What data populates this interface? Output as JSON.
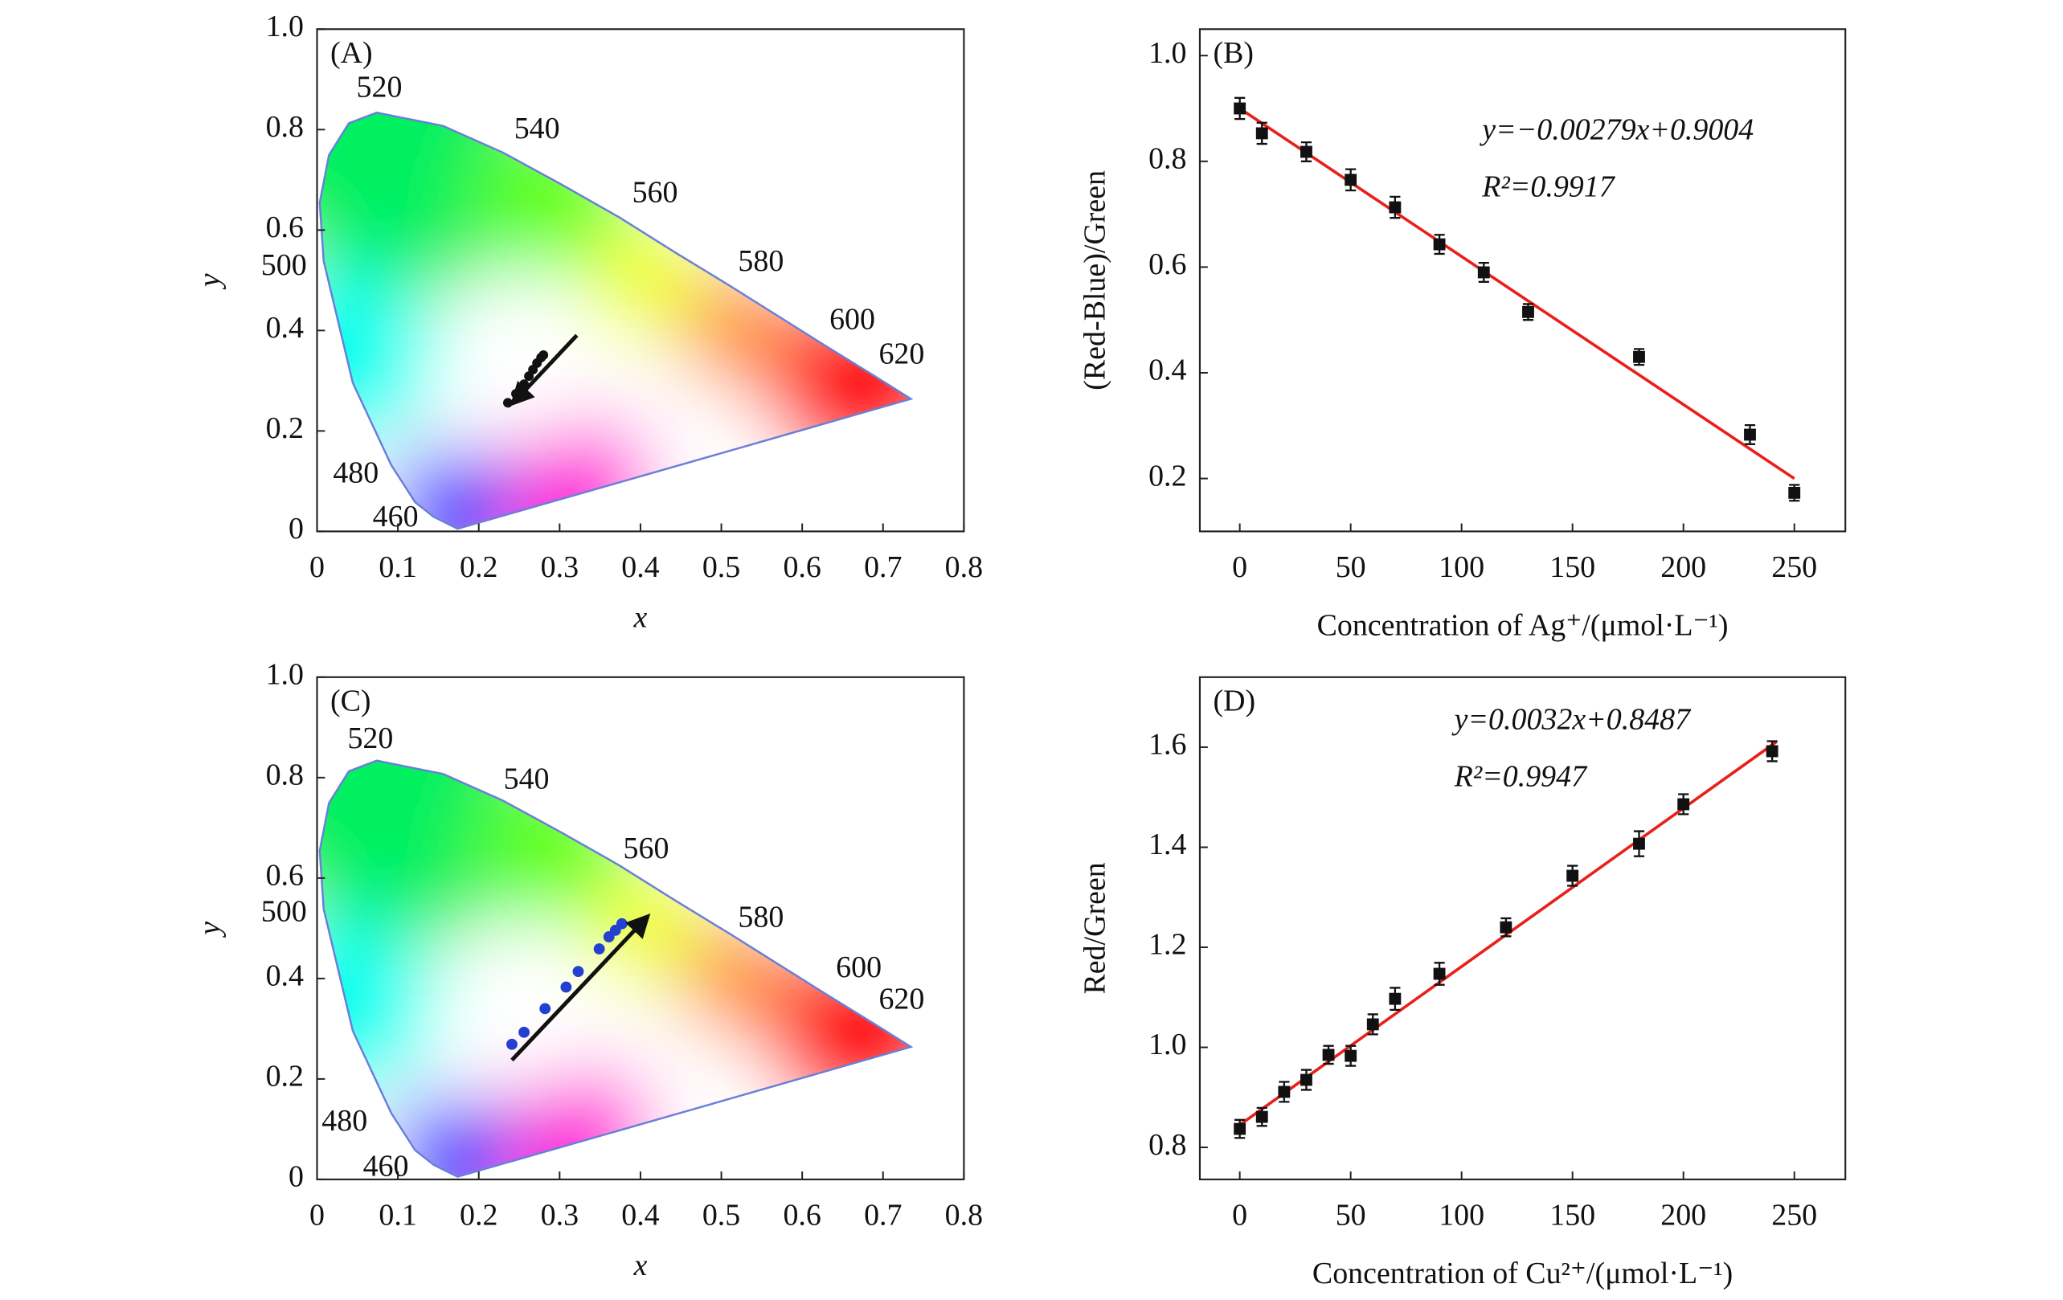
{
  "chart_data": [
    {
      "type": "scatter",
      "panel_label": "(A)",
      "xlabel": "x",
      "ylabel": "y",
      "xlim": [
        0,
        0.8
      ],
      "ylim": [
        0,
        1
      ],
      "xticks": [
        0,
        0.1,
        0.2,
        0.3,
        0.4,
        0.5,
        0.6,
        0.7,
        0.8
      ],
      "yticks": [
        0,
        0.2,
        0.4,
        0.6,
        0.8,
        {
          "value": 1,
          "label": "1.0"
        }
      ],
      "x": [
        0.236,
        0.246,
        0.256,
        0.262,
        0.267,
        0.272,
        0.277,
        0.28
      ],
      "values": [
        0.256,
        0.274,
        0.293,
        0.309,
        0.322,
        0.335,
        0.346,
        0.351
      ],
      "color": "#111111",
      "annotations": [
        {
          "text": "520",
          "x": 0.077,
          "y": 0.879
        },
        {
          "text": "540",
          "x": 0.272,
          "y": 0.797
        },
        {
          "text": "560",
          "x": 0.418,
          "y": 0.67
        },
        {
          "text": "580",
          "x": 0.549,
          "y": 0.533
        },
        {
          "text": "600",
          "x": 0.662,
          "y": 0.417
        },
        {
          "text": "620",
          "x": 0.723,
          "y": 0.348
        },
        {
          "text": "500",
          "x": -0.041,
          "y": 0.525
        },
        {
          "text": "480",
          "x": 0.048,
          "y": 0.111
        },
        {
          "text": "460",
          "x": 0.097,
          "y": 0.024
        }
      ]
    },
    {
      "type": "scatter",
      "panel_label": "(B)",
      "xlabel": "Concentration of Ag⁺/(μmol·L⁻¹)",
      "ylabel": "(Red-Blue)/Green",
      "xlim": [
        -18,
        273
      ],
      "ylim": [
        0.1,
        1.05
      ],
      "xticks": [
        0,
        50,
        100,
        150,
        200,
        250
      ],
      "yticks": [
        0.2,
        0.4,
        0.6,
        0.8,
        {
          "value": 1,
          "label": "1.0"
        }
      ],
      "x": [
        0,
        10,
        30,
        50,
        70,
        90,
        110,
        130,
        180,
        230,
        250
      ],
      "values": [
        0.9,
        0.853,
        0.818,
        0.765,
        0.713,
        0.643,
        0.59,
        0.515,
        0.43,
        0.283,
        0.173
      ],
      "errors": [
        0.02,
        0.02,
        0.018,
        0.02,
        0.02,
        0.018,
        0.018,
        0.015,
        0.015,
        0.018,
        0.015
      ],
      "color": "#111111",
      "fit": {
        "x": [
          0,
          250
        ],
        "values": [
          0.9,
          0.2
        ],
        "color": "#e8201c"
      },
      "equation": "y=−0.00279x+0.9004",
      "r_squared": "R²=0.9917"
    },
    {
      "type": "scatter",
      "panel_label": "(C)",
      "xlabel": "x",
      "ylabel": "y",
      "xlim": [
        0,
        0.8
      ],
      "ylim": [
        0,
        1
      ],
      "xticks": [
        0,
        0.1,
        0.2,
        0.3,
        0.4,
        0.5,
        0.6,
        0.7,
        0.8
      ],
      "yticks": [
        0,
        0.2,
        0.4,
        0.6,
        0.8,
        {
          "value": 1,
          "label": "1.0"
        }
      ],
      "x": [
        0.241,
        0.256,
        0.282,
        0.308,
        0.323,
        0.349,
        0.361,
        0.369,
        0.377
      ],
      "values": [
        0.269,
        0.293,
        0.34,
        0.383,
        0.414,
        0.459,
        0.483,
        0.496,
        0.509
      ],
      "color": "#2340d0",
      "annotations": [
        {
          "text": "520",
          "x": 0.066,
          "y": 0.873
        },
        {
          "text": "540",
          "x": 0.259,
          "y": 0.792
        },
        {
          "text": "560",
          "x": 0.407,
          "y": 0.654
        },
        {
          "text": "580",
          "x": 0.549,
          "y": 0.517
        },
        {
          "text": "600",
          "x": 0.67,
          "y": 0.417
        },
        {
          "text": "620",
          "x": 0.723,
          "y": 0.354
        },
        {
          "text": "500",
          "x": -0.041,
          "y": 0.528
        },
        {
          "text": "480",
          "x": 0.034,
          "y": 0.111
        },
        {
          "text": "460",
          "x": 0.085,
          "y": 0.021
        }
      ]
    },
    {
      "type": "scatter",
      "panel_label": "(D)",
      "xlabel": "Concentration of Cu²⁺/(μmol·L⁻¹)",
      "ylabel": "Red/Green",
      "xlim": [
        -18,
        273
      ],
      "ylim": [
        0.736,
        1.74
      ],
      "xticks": [
        0,
        50,
        100,
        150,
        200,
        250
      ],
      "yticks": [
        0.8,
        {
          "value": 1,
          "label": "1.0"
        },
        1.2,
        1.4,
        1.6
      ],
      "x": [
        0,
        10,
        20,
        30,
        40,
        50,
        60,
        70,
        90,
        120,
        150,
        180,
        200,
        240
      ],
      "values": [
        0.837,
        0.861,
        0.911,
        0.935,
        0.985,
        0.983,
        1.046,
        1.097,
        1.147,
        1.24,
        1.343,
        1.407,
        1.486,
        1.592
      ],
      "errors": [
        0.018,
        0.018,
        0.02,
        0.02,
        0.018,
        0.02,
        0.02,
        0.022,
        0.022,
        0.018,
        0.02,
        0.025,
        0.02,
        0.02
      ],
      "color": "#111111",
      "fit": {
        "x": [
          0,
          242
        ],
        "values": [
          0.845,
          1.611
        ],
        "color": "#e8201c"
      },
      "equation": "y=0.0032x+0.8487",
      "r_squared": "R²=0.9947"
    }
  ]
}
